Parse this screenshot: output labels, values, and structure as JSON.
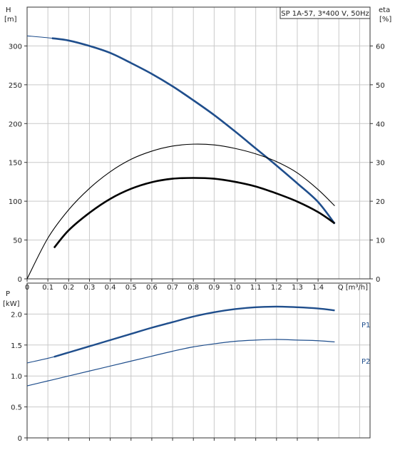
{
  "chart_data": [
    {
      "type": "line",
      "panel": "head-efficiency",
      "title": "SP 1A-57, 3*400 V, 50Hz",
      "xlabel": "Q [m³/h]",
      "ylabel_left": [
        "H",
        "[m]"
      ],
      "ylabel_right": [
        "eta",
        "[%]"
      ],
      "xlim": [
        0,
        1.65
      ],
      "ylim_left": [
        0,
        350
      ],
      "ylim_right": [
        0,
        70
      ],
      "xticks": [
        0,
        0.1,
        0.2,
        0.3,
        0.4,
        0.5,
        0.6,
        0.7,
        0.8,
        0.9,
        1.0,
        1.1,
        1.2,
        1.3,
        1.4
      ],
      "xtick_labels": [
        "0",
        "0.1",
        "0.2",
        "0.3",
        "0.4",
        "0.5",
        "0.6",
        "0.7",
        "0.8",
        "0.9",
        "1.0",
        "1.1",
        "1.2",
        "1.3",
        "1.4"
      ],
      "yticks_left": [
        0,
        50,
        100,
        150,
        200,
        250,
        300
      ],
      "ytick_labels_left": [
        "0",
        "50",
        "100",
        "150",
        "200",
        "250",
        "300"
      ],
      "yticks_right": [
        0,
        10,
        20,
        30,
        40,
        50,
        60
      ],
      "ytick_labels_right": [
        "0",
        "10",
        "20",
        "30",
        "40",
        "50",
        "60"
      ],
      "grid": true,
      "series": [
        {
          "key": "head",
          "axis": "left",
          "color": "#1f4e8c",
          "emphasis": "thick",
          "x": [
            0,
            0.12,
            0.2,
            0.3,
            0.4,
            0.5,
            0.6,
            0.7,
            0.8,
            0.9,
            1.0,
            1.1,
            1.2,
            1.3,
            1.4,
            1.48
          ],
          "y": [
            313,
            310,
            307,
            300,
            291,
            278,
            264,
            248,
            230,
            211,
            190,
            168,
            146,
            123,
            99,
            71
          ],
          "thick_from": 0.12
        },
        {
          "key": "eta-thin",
          "axis": "right",
          "color": "#000000",
          "emphasis": "thin",
          "x": [
            0,
            0.1,
            0.2,
            0.3,
            0.4,
            0.5,
            0.6,
            0.7,
            0.8,
            0.9,
            1.0,
            1.1,
            1.2,
            1.3,
            1.4,
            1.48
          ],
          "y": [
            0,
            10.5,
            17.8,
            23.3,
            27.6,
            30.8,
            32.9,
            34.2,
            34.7,
            34.5,
            33.6,
            32.2,
            30.2,
            27.3,
            23.0,
            18.8
          ]
        },
        {
          "key": "eta-thick",
          "axis": "right",
          "color": "#000000",
          "emphasis": "thick",
          "x": [
            0.13,
            0.2,
            0.3,
            0.4,
            0.5,
            0.6,
            0.7,
            0.8,
            0.9,
            1.0,
            1.1,
            1.2,
            1.3,
            1.4,
            1.48
          ],
          "y": [
            8.0,
            12.5,
            17.0,
            20.6,
            23.2,
            24.9,
            25.8,
            26.0,
            25.8,
            25.0,
            23.8,
            22.0,
            19.9,
            17.2,
            14.3
          ]
        }
      ]
    },
    {
      "type": "line",
      "panel": "power",
      "ylabel": [
        "P",
        "[kW]"
      ],
      "xlim": [
        0,
        1.65
      ],
      "ylim": [
        0,
        2.5
      ],
      "yticks": [
        0,
        0.5,
        1.0,
        1.5,
        2.0
      ],
      "ytick_labels": [
        "0",
        "0.5",
        "1.0",
        "1.5",
        "2.0"
      ],
      "grid": true,
      "series": [
        {
          "name": "P1",
          "color": "#1f4e8c",
          "emphasis": "thick",
          "x": [
            0,
            0.13,
            0.2,
            0.3,
            0.4,
            0.5,
            0.6,
            0.7,
            0.8,
            0.9,
            1.0,
            1.1,
            1.2,
            1.3,
            1.4,
            1.48
          ],
          "y": [
            1.21,
            1.31,
            1.38,
            1.48,
            1.58,
            1.68,
            1.78,
            1.87,
            1.96,
            2.03,
            2.08,
            2.11,
            2.12,
            2.11,
            2.09,
            2.06
          ],
          "thick_from": 0.13
        },
        {
          "name": "P2",
          "color": "#1f4e8c",
          "emphasis": "thin",
          "x": [
            0,
            0.1,
            0.2,
            0.3,
            0.4,
            0.5,
            0.6,
            0.7,
            0.8,
            0.9,
            1.0,
            1.1,
            1.2,
            1.3,
            1.4,
            1.48
          ],
          "y": [
            0.84,
            0.92,
            1.0,
            1.08,
            1.16,
            1.24,
            1.32,
            1.4,
            1.47,
            1.52,
            1.56,
            1.58,
            1.59,
            1.58,
            1.57,
            1.55
          ]
        }
      ]
    }
  ]
}
